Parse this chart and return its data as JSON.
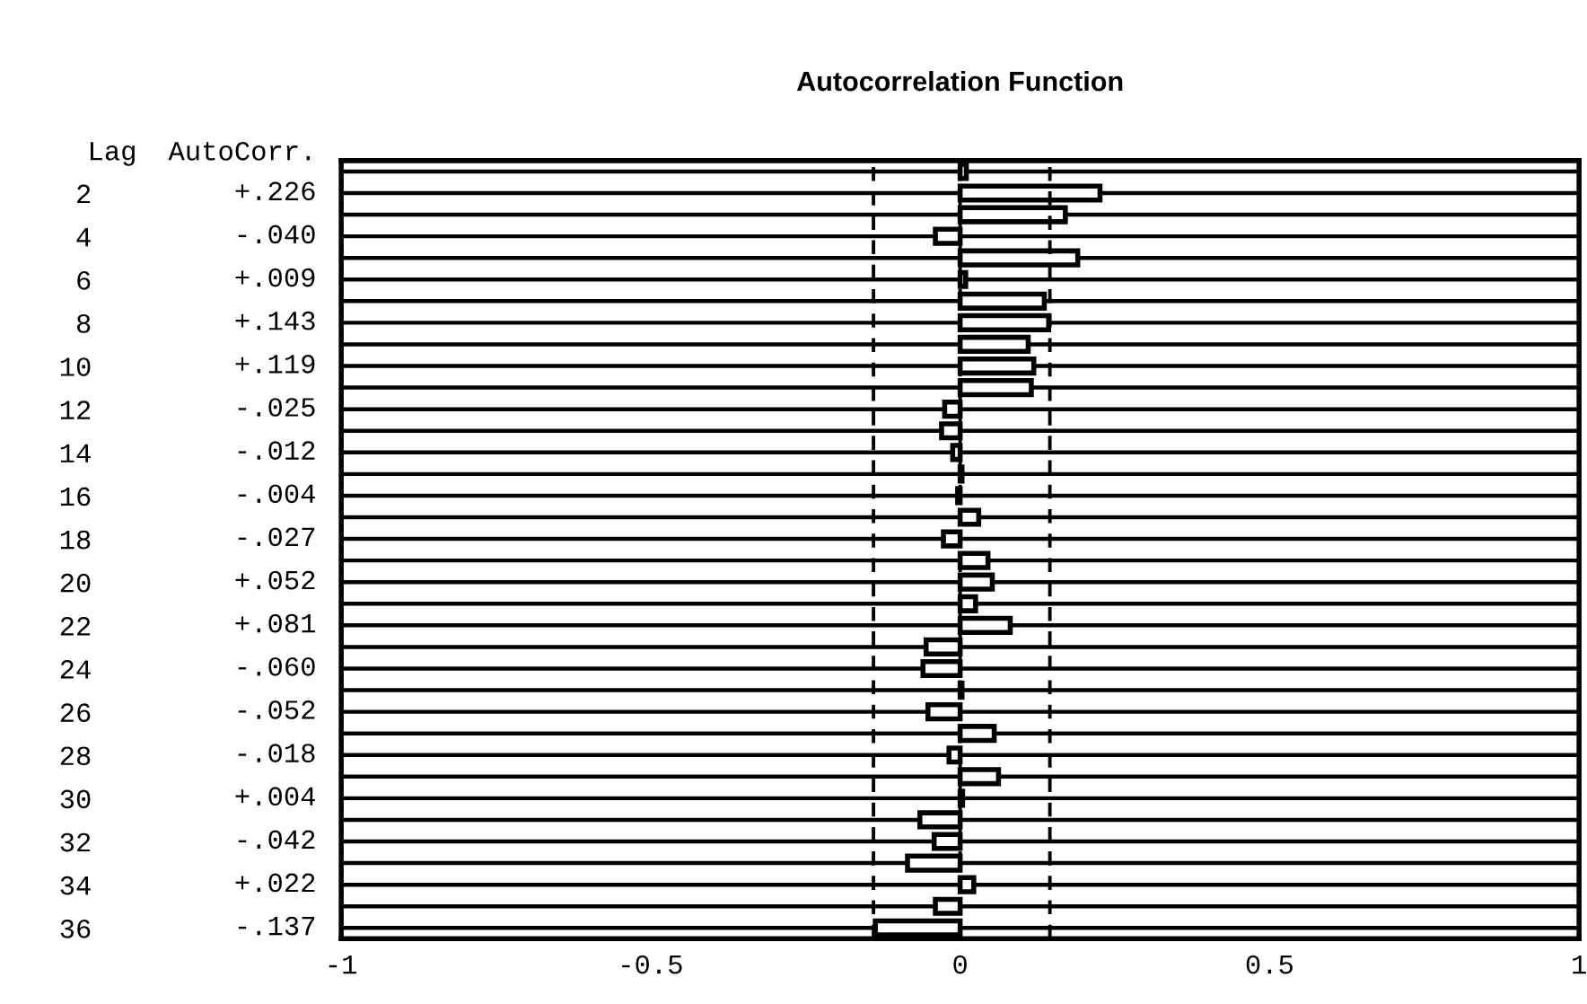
{
  "chart_data": {
    "type": "bar",
    "orientation": "horizontal",
    "title": "Autocorrelation Function",
    "categories": [
      null,
      "2",
      null,
      "4",
      null,
      "6",
      null,
      "8",
      null,
      "10",
      null,
      "12",
      null,
      "14",
      null,
      "16",
      null,
      "18",
      null,
      "20",
      null,
      "22",
      null,
      "24",
      null,
      "26",
      null,
      "28",
      null,
      "30",
      null,
      "32",
      null,
      "34",
      null,
      "36"
    ],
    "values": [
      0.01,
      0.226,
      0.17,
      -0.04,
      0.19,
      0.009,
      0.136,
      0.143,
      0.11,
      0.119,
      0.115,
      -0.025,
      -0.03,
      -0.012,
      0.003,
      -0.004,
      0.03,
      -0.027,
      0.045,
      0.052,
      0.025,
      0.081,
      -0.055,
      -0.06,
      0.003,
      -0.052,
      0.055,
      -0.018,
      0.062,
      0.004,
      -0.065,
      -0.042,
      -0.085,
      0.022,
      -0.04,
      -0.137
    ],
    "value_labels": [
      null,
      "+.226",
      null,
      "-.040",
      null,
      "+.009",
      null,
      "+.143",
      null,
      "+.119",
      null,
      "-.025",
      null,
      "-.012",
      null,
      "-.004",
      null,
      "-.027",
      null,
      "+.052",
      null,
      "+.081",
      null,
      "-.060",
      null,
      "-.052",
      null,
      "-.018",
      null,
      "+.004",
      null,
      "-.042",
      null,
      "+.022",
      null,
      "-.137"
    ],
    "color": "#ffffff",
    "annotations": [
      "Lag",
      "AutoCorr."
    ],
    "xlim": [
      -1,
      1
    ],
    "xticks": [
      -1,
      -0.5,
      0,
      0.5,
      1
    ],
    "ref_lines": [
      {
        "axis": "x",
        "value": -0.14,
        "line_style": "dashed",
        "color": "#000000"
      },
      {
        "axis": "x",
        "value": 0.145,
        "line_style": "dashed",
        "color": "#000000"
      },
      {
        "axis": "x",
        "value": 0,
        "line_style": "dashed",
        "color": "#000000"
      }
    ],
    "grid": "y",
    "legend": false
  }
}
